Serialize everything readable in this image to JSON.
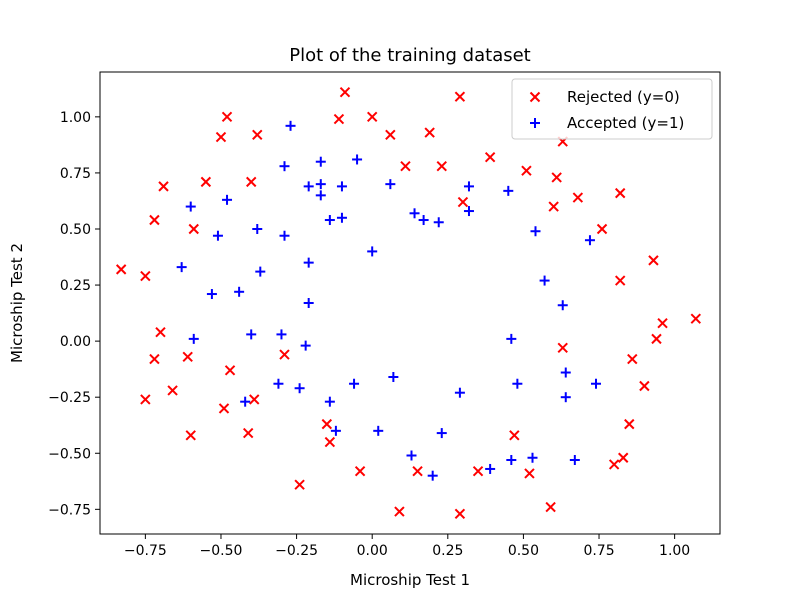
{
  "chart_data": {
    "type": "scatter",
    "title": "Plot of the training dataset",
    "xlabel": "Microship Test 1",
    "ylabel": "Microship Test 2",
    "xlim": [
      -0.9,
      1.15
    ],
    "ylim": [
      -0.86,
      1.2
    ],
    "xticks": [
      -0.75,
      -0.5,
      -0.25,
      0.0,
      0.25,
      0.5,
      0.75,
      1.0
    ],
    "xtick_labels": [
      "−0.75",
      "−0.50",
      "−0.25",
      "0.00",
      "0.25",
      "0.50",
      "0.75",
      "1.00"
    ],
    "yticks": [
      -0.75,
      -0.5,
      -0.25,
      0.0,
      0.25,
      0.5,
      0.75,
      1.0
    ],
    "ytick_labels": [
      "−0.75",
      "−0.50",
      "−0.25",
      "0.00",
      "0.25",
      "0.50",
      "0.75",
      "1.00"
    ],
    "grid": false,
    "legend_position": "top-right",
    "series": [
      {
        "name": "Rejected (y=0)",
        "marker": "x",
        "color": "#ff0000",
        "points": [
          [
            -0.09,
            1.11
          ],
          [
            0.29,
            1.09
          ],
          [
            -0.48,
            1.0
          ],
          [
            0.0,
            1.0
          ],
          [
            -0.11,
            0.99
          ],
          [
            -0.5,
            0.91
          ],
          [
            -0.38,
            0.92
          ],
          [
            0.06,
            0.92
          ],
          [
            0.19,
            0.93
          ],
          [
            0.63,
            0.89
          ],
          [
            0.39,
            0.82
          ],
          [
            0.11,
            0.78
          ],
          [
            0.23,
            0.78
          ],
          [
            0.51,
            0.76
          ],
          [
            0.61,
            0.73
          ],
          [
            -0.69,
            0.69
          ],
          [
            -0.55,
            0.71
          ],
          [
            -0.4,
            0.71
          ],
          [
            0.68,
            0.64
          ],
          [
            0.82,
            0.66
          ],
          [
            0.3,
            0.62
          ],
          [
            0.6,
            0.6
          ],
          [
            -0.72,
            0.54
          ],
          [
            -0.59,
            0.5
          ],
          [
            0.76,
            0.5
          ],
          [
            -0.83,
            0.32
          ],
          [
            -0.75,
            0.29
          ],
          [
            0.93,
            0.36
          ],
          [
            0.82,
            0.27
          ],
          [
            0.96,
            0.08
          ],
          [
            1.07,
            0.1
          ],
          [
            -0.7,
            0.04
          ],
          [
            0.94,
            0.01
          ],
          [
            -0.72,
            -0.08
          ],
          [
            -0.61,
            -0.07
          ],
          [
            -0.29,
            -0.06
          ],
          [
            0.63,
            -0.03
          ],
          [
            0.86,
            -0.08
          ],
          [
            -0.47,
            -0.13
          ],
          [
            -0.66,
            -0.22
          ],
          [
            0.9,
            -0.2
          ],
          [
            -0.75,
            -0.26
          ],
          [
            -0.39,
            -0.26
          ],
          [
            -0.49,
            -0.3
          ],
          [
            0.85,
            -0.37
          ],
          [
            -0.15,
            -0.37
          ],
          [
            -0.41,
            -0.41
          ],
          [
            -0.6,
            -0.42
          ],
          [
            0.47,
            -0.42
          ],
          [
            -0.14,
            -0.45
          ],
          [
            0.83,
            -0.52
          ],
          [
            0.8,
            -0.55
          ],
          [
            -0.04,
            -0.58
          ],
          [
            0.15,
            -0.58
          ],
          [
            0.35,
            -0.58
          ],
          [
            0.52,
            -0.59
          ],
          [
            -0.24,
            -0.64
          ],
          [
            0.59,
            -0.74
          ],
          [
            0.09,
            -0.76
          ],
          [
            0.29,
            -0.77
          ]
        ]
      },
      {
        "name": "Accepted (y=1)",
        "marker": "+",
        "color": "#0000ff",
        "points": [
          [
            -0.27,
            0.96
          ],
          [
            -0.05,
            0.81
          ],
          [
            -0.17,
            0.8
          ],
          [
            -0.29,
            0.78
          ],
          [
            -0.21,
            0.69
          ],
          [
            -0.17,
            0.7
          ],
          [
            -0.1,
            0.69
          ],
          [
            0.06,
            0.7
          ],
          [
            0.32,
            0.69
          ],
          [
            0.45,
            0.67
          ],
          [
            -0.17,
            0.65
          ],
          [
            -0.48,
            0.63
          ],
          [
            -0.6,
            0.6
          ],
          [
            0.32,
            0.58
          ],
          [
            0.14,
            0.57
          ],
          [
            -0.14,
            0.54
          ],
          [
            -0.1,
            0.55
          ],
          [
            0.17,
            0.54
          ],
          [
            0.22,
            0.53
          ],
          [
            0.54,
            0.49
          ],
          [
            -0.38,
            0.5
          ],
          [
            -0.51,
            0.47
          ],
          [
            -0.29,
            0.47
          ],
          [
            0.72,
            0.45
          ],
          [
            0.0,
            0.4
          ],
          [
            -0.21,
            0.35
          ],
          [
            -0.63,
            0.33
          ],
          [
            -0.37,
            0.31
          ],
          [
            0.57,
            0.27
          ],
          [
            -0.53,
            0.21
          ],
          [
            -0.44,
            0.22
          ],
          [
            -0.21,
            0.17
          ],
          [
            0.63,
            0.16
          ],
          [
            -0.4,
            0.03
          ],
          [
            -0.3,
            0.03
          ],
          [
            -0.59,
            0.01
          ],
          [
            0.46,
            0.01
          ],
          [
            -0.22,
            -0.02
          ],
          [
            0.64,
            -0.14
          ],
          [
            0.07,
            -0.16
          ],
          [
            -0.06,
            -0.19
          ],
          [
            0.48,
            -0.19
          ],
          [
            0.74,
            -0.19
          ],
          [
            -0.31,
            -0.19
          ],
          [
            -0.24,
            -0.21
          ],
          [
            0.29,
            -0.23
          ],
          [
            0.64,
            -0.25
          ],
          [
            -0.42,
            -0.27
          ],
          [
            -0.14,
            -0.27
          ],
          [
            -0.12,
            -0.4
          ],
          [
            0.02,
            -0.4
          ],
          [
            0.23,
            -0.41
          ],
          [
            0.13,
            -0.51
          ],
          [
            0.53,
            -0.52
          ],
          [
            0.46,
            -0.53
          ],
          [
            0.67,
            -0.53
          ],
          [
            0.39,
            -0.57
          ],
          [
            0.2,
            -0.6
          ]
        ]
      }
    ]
  }
}
